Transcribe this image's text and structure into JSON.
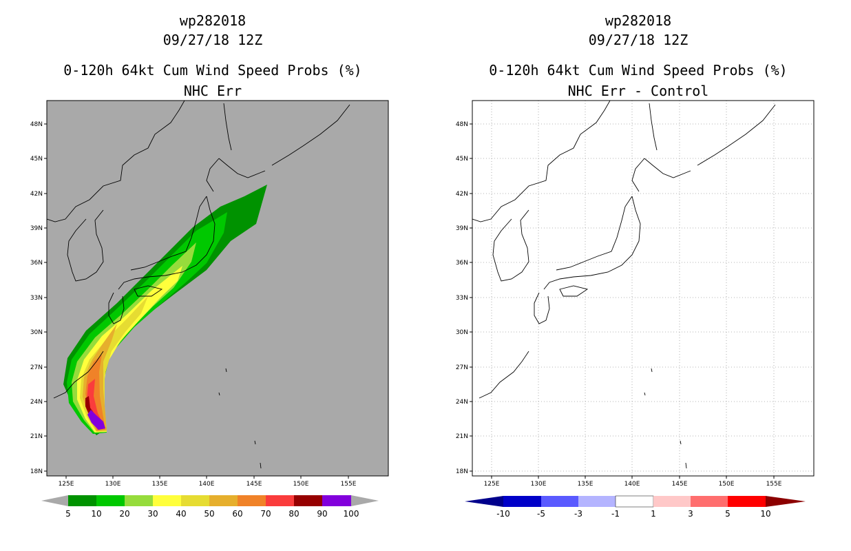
{
  "colors": {
    "ocean_left": "#a9a9a9",
    "coast": "#000000",
    "grid": "#9a9a9a"
  },
  "axes": {
    "lat_labels": [
      "48N",
      "45N",
      "42N",
      "39N",
      "36N",
      "33N",
      "30N",
      "27N",
      "24N",
      "21N",
      "18N"
    ],
    "lon_labels": [
      "125E",
      "130E",
      "135E",
      "140E",
      "145E",
      "150E",
      "155E"
    ]
  },
  "left": {
    "title_line1": "wp282018",
    "title_line2": "09/27/18 12Z",
    "title_line3": "0-120h 64kt Cum Wind Speed Probs (%)",
    "title_line4": "NHC Err",
    "colorbar": {
      "labels": [
        "5",
        "10",
        "20",
        "30",
        "40",
        "50",
        "60",
        "70",
        "80",
        "90",
        "100"
      ],
      "colors": [
        "#009200",
        "#00c800",
        "#96dc3c",
        "#ffff3c",
        "#e6dc32",
        "#e6af2d",
        "#f08228",
        "#fa3c3c",
        "#960000",
        "#8200dc"
      ]
    }
  },
  "right": {
    "title_line1": "wp282018",
    "title_line2": "09/27/18 12Z",
    "title_line3": "0-120h 64kt Cum Wind Speed Probs (%)",
    "title_line4": "NHC Err - Control",
    "colorbar": {
      "labels": [
        "-10",
        "-5",
        "-3",
        "-1",
        "1",
        "3",
        "5",
        "10"
      ],
      "colors": [
        "#0000c8",
        "#5a5aff",
        "#b4b4ff",
        "#ffffff",
        "#ffc8c8",
        "#ff6e6e",
        "#ff0000",
        "#8c0000"
      ]
    }
  }
}
